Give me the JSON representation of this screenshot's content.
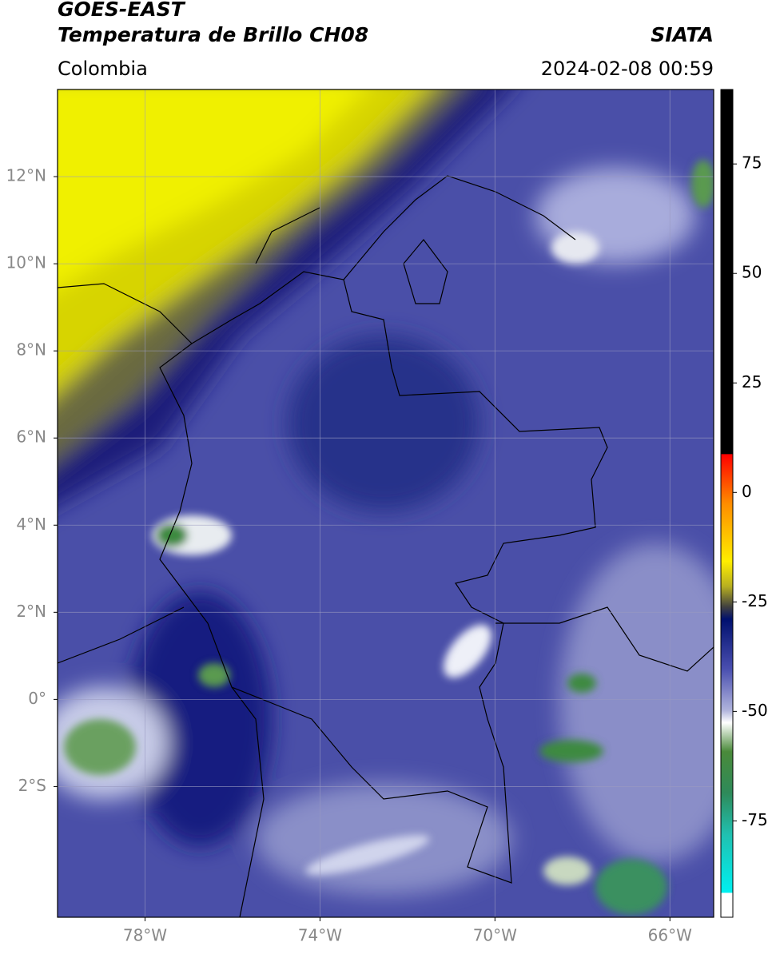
{
  "header": {
    "source": "GOES-EAST",
    "product": "Temperatura de Brillo CH08",
    "region": "Colombia",
    "organization": "SIATA",
    "datetime": "2024-02-08 00:59"
  },
  "map": {
    "xlim": [
      -80,
      -65
    ],
    "ylim": [
      -5,
      14
    ],
    "xticks": [
      {
        "value": -78,
        "label": "78°W"
      },
      {
        "value": -74,
        "label": "74°W"
      },
      {
        "value": -70,
        "label": "70°W"
      },
      {
        "value": -66,
        "label": "66°W"
      }
    ],
    "yticks": [
      {
        "value": 12,
        "label": "12°N"
      },
      {
        "value": 10,
        "label": "10°N"
      },
      {
        "value": 8,
        "label": "8°N"
      },
      {
        "value": 6,
        "label": "6°N"
      },
      {
        "value": 4,
        "label": "4°N"
      },
      {
        "value": 2,
        "label": "2°N"
      },
      {
        "value": 0,
        "label": "0°"
      },
      {
        "value": -2,
        "label": "2°S"
      }
    ],
    "grid": true
  },
  "colorbar": {
    "lim": [
      -97,
      92
    ],
    "ticks": [
      75,
      50,
      25,
      0,
      -25,
      -50,
      -75
    ]
  }
}
